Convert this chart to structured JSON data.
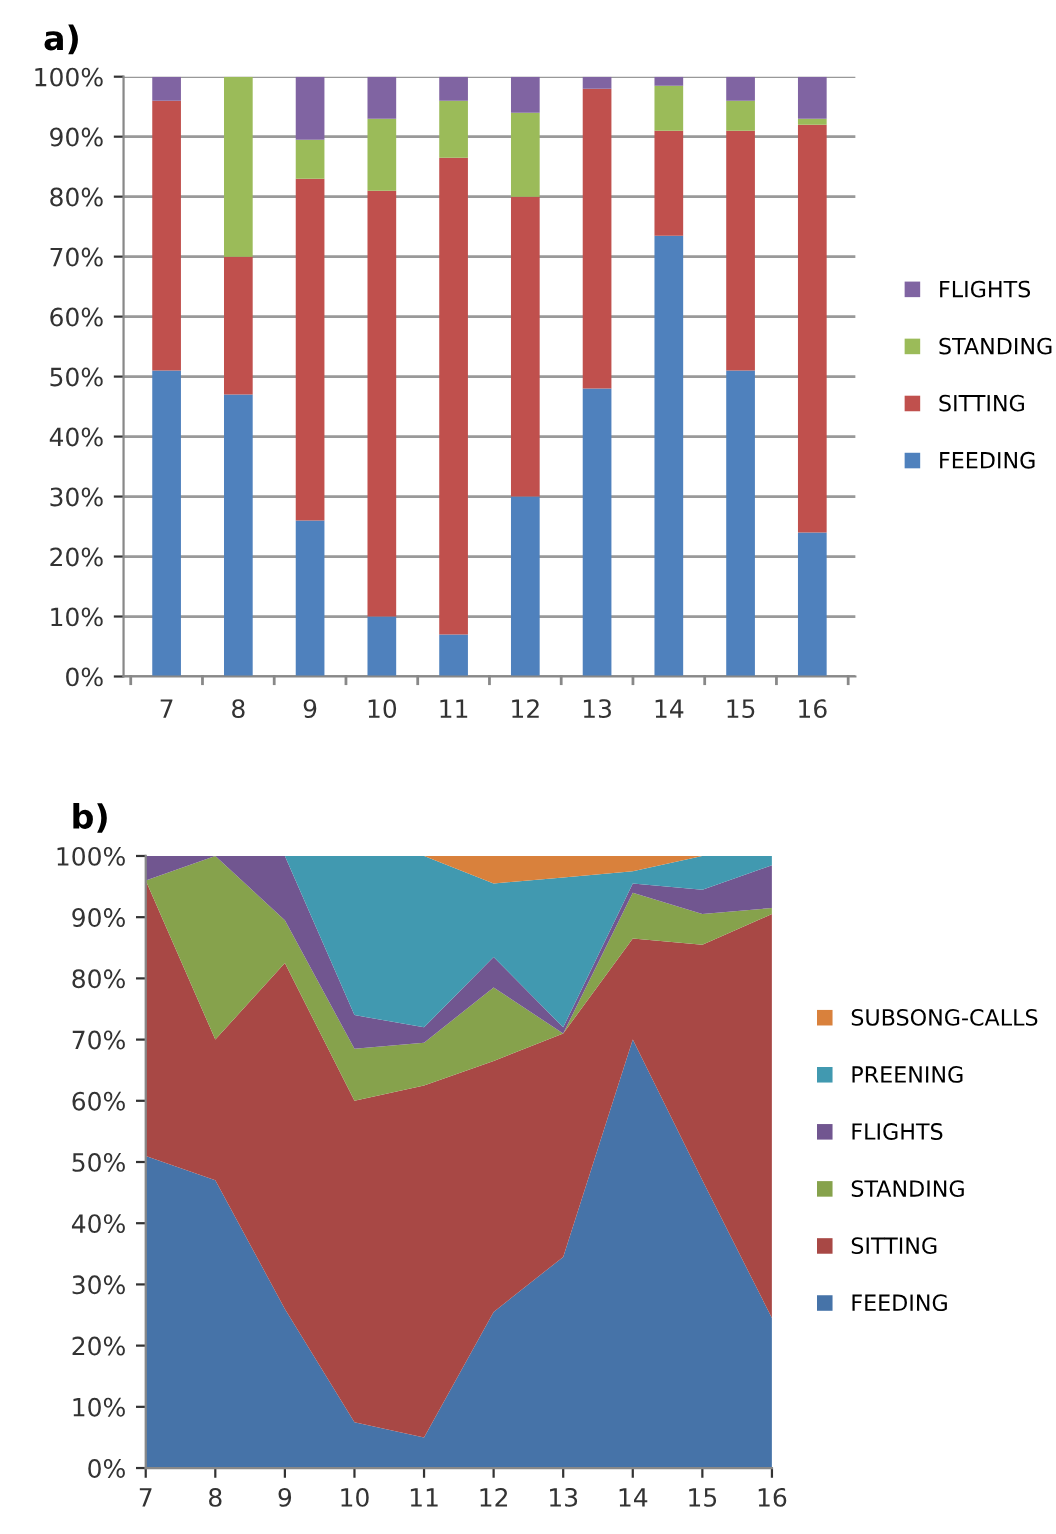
{
  "chart_data": [
    {
      "type": "bar",
      "stacked": true,
      "categories": [
        "7",
        "8",
        "9",
        "10",
        "11",
        "12",
        "13",
        "14",
        "15",
        "16"
      ],
      "ylim": [
        0,
        100
      ],
      "yticks": [
        {
          "value": 0,
          "label": "0%"
        },
        {
          "value": 10,
          "label": "10%"
        },
        {
          "value": 20,
          "label": "20%"
        },
        {
          "value": 30,
          "label": "30%"
        },
        {
          "value": 40,
          "label": "40%"
        },
        {
          "value": 50,
          "label": "50%"
        },
        {
          "value": 60,
          "label": "60%"
        },
        {
          "value": 70,
          "label": "70%"
        },
        {
          "value": 80,
          "label": "80%"
        },
        {
          "value": 90,
          "label": "90%"
        },
        {
          "value": 100,
          "label": "100%"
        }
      ],
      "grid": "y",
      "legend": "right",
      "annotations": [
        "a)"
      ],
      "series": [
        {
          "name": "FEEDING",
          "color": "#4f81bd",
          "values": [
            51,
            47,
            26,
            10,
            7,
            30,
            48,
            73.5,
            51,
            24
          ]
        },
        {
          "name": "SITTING",
          "color": "#c0504d",
          "values": [
            45,
            23,
            57,
            71,
            79.5,
            50,
            50,
            17.5,
            40,
            68
          ]
        },
        {
          "name": "STANDING",
          "color": "#9bbb59",
          "values": [
            0,
            30,
            6.5,
            12,
            9.5,
            14,
            0,
            7.5,
            5,
            1
          ]
        },
        {
          "name": "FLIGHTS",
          "color": "#8064a2",
          "values": [
            4,
            0,
            10.5,
            7,
            4,
            6,
            2,
            1.5,
            4,
            7
          ]
        }
      ]
    },
    {
      "type": "area",
      "stacked": true,
      "categories": [
        "7",
        "8",
        "9",
        "10",
        "11",
        "12",
        "13",
        "14",
        "15",
        "16"
      ],
      "ylim": [
        0,
        100
      ],
      "yticks": [
        {
          "value": 0,
          "label": "0%"
        },
        {
          "value": 10,
          "label": "10%"
        },
        {
          "value": 20,
          "label": "20%"
        },
        {
          "value": 30,
          "label": "30%"
        },
        {
          "value": 40,
          "label": "40%"
        },
        {
          "value": 50,
          "label": "50%"
        },
        {
          "value": 60,
          "label": "60%"
        },
        {
          "value": 70,
          "label": "70%"
        },
        {
          "value": 80,
          "label": "80%"
        },
        {
          "value": 90,
          "label": "90%"
        },
        {
          "value": 100,
          "label": "100%"
        }
      ],
      "grid": false,
      "legend": "right",
      "annotations": [
        "b)"
      ],
      "series": [
        {
          "name": "FEEDING",
          "color": "#4673a8",
          "values": [
            51,
            47,
            26,
            7.5,
            5,
            25.5,
            34.5,
            70,
            47,
            24.5
          ]
        },
        {
          "name": "SITTING",
          "color": "#a84845",
          "values": [
            45,
            23,
            56.5,
            52.5,
            57.5,
            41,
            36.5,
            16.5,
            38.5,
            66
          ]
        },
        {
          "name": "STANDING",
          "color": "#86a24c",
          "values": [
            0,
            30,
            7,
            8.5,
            7,
            12,
            0,
            7.5,
            5,
            1
          ]
        },
        {
          "name": "FLIGHTS",
          "color": "#715690",
          "values": [
            4,
            0,
            10.5,
            5.5,
            2.5,
            5,
            1,
            1.5,
            4,
            7
          ]
        },
        {
          "name": "PREENING",
          "color": "#4199b0",
          "values": [
            0,
            0,
            0,
            26,
            28,
            12,
            24.5,
            2,
            5.5,
            1.5
          ]
        },
        {
          "name": "SUBSONG-CALLS",
          "color": "#d9813c",
          "values": [
            0,
            0,
            0,
            0,
            0,
            4.5,
            3.5,
            2.5,
            0,
            0
          ]
        }
      ]
    }
  ]
}
